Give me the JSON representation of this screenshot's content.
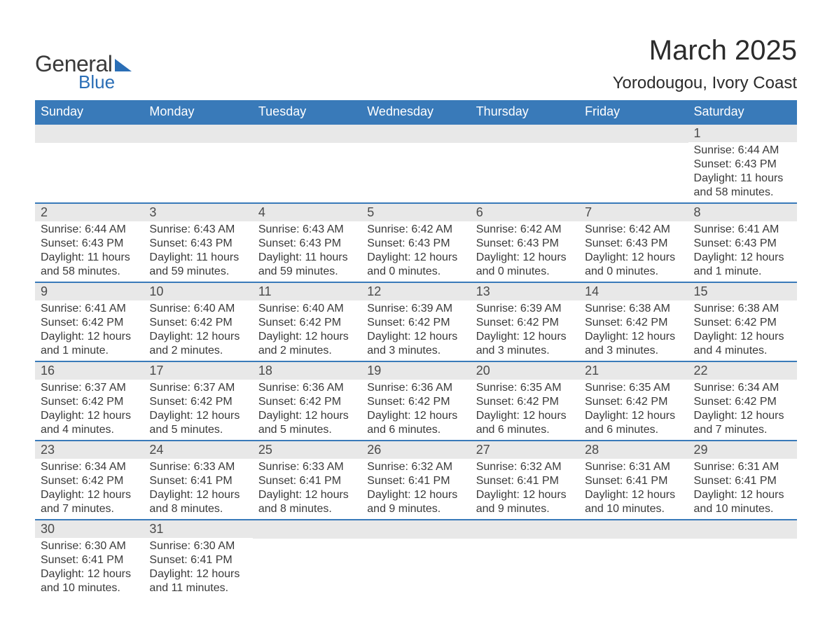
{
  "logo": {
    "text_general": "General",
    "text_blue": "Blue",
    "brand_color": "#2a6eb6"
  },
  "title": "March 2025",
  "location": "Yorodougou, Ivory Coast",
  "colors": {
    "header_bg": "#397ab9",
    "header_text": "#ffffff",
    "daynum_bg": "#e8e8e8",
    "border": "#397ab9",
    "body_text": "#3a3a3a"
  },
  "weekdays": [
    "Sunday",
    "Monday",
    "Tuesday",
    "Wednesday",
    "Thursday",
    "Friday",
    "Saturday"
  ],
  "weeks": [
    [
      null,
      null,
      null,
      null,
      null,
      null,
      {
        "n": "1",
        "sr": "Sunrise: 6:44 AM",
        "ss": "Sunset: 6:43 PM",
        "dl": "Daylight: 11 hours and 58 minutes."
      }
    ],
    [
      {
        "n": "2",
        "sr": "Sunrise: 6:44 AM",
        "ss": "Sunset: 6:43 PM",
        "dl": "Daylight: 11 hours and 58 minutes."
      },
      {
        "n": "3",
        "sr": "Sunrise: 6:43 AM",
        "ss": "Sunset: 6:43 PM",
        "dl": "Daylight: 11 hours and 59 minutes."
      },
      {
        "n": "4",
        "sr": "Sunrise: 6:43 AM",
        "ss": "Sunset: 6:43 PM",
        "dl": "Daylight: 11 hours and 59 minutes."
      },
      {
        "n": "5",
        "sr": "Sunrise: 6:42 AM",
        "ss": "Sunset: 6:43 PM",
        "dl": "Daylight: 12 hours and 0 minutes."
      },
      {
        "n": "6",
        "sr": "Sunrise: 6:42 AM",
        "ss": "Sunset: 6:43 PM",
        "dl": "Daylight: 12 hours and 0 minutes."
      },
      {
        "n": "7",
        "sr": "Sunrise: 6:42 AM",
        "ss": "Sunset: 6:43 PM",
        "dl": "Daylight: 12 hours and 0 minutes."
      },
      {
        "n": "8",
        "sr": "Sunrise: 6:41 AM",
        "ss": "Sunset: 6:43 PM",
        "dl": "Daylight: 12 hours and 1 minute."
      }
    ],
    [
      {
        "n": "9",
        "sr": "Sunrise: 6:41 AM",
        "ss": "Sunset: 6:42 PM",
        "dl": "Daylight: 12 hours and 1 minute."
      },
      {
        "n": "10",
        "sr": "Sunrise: 6:40 AM",
        "ss": "Sunset: 6:42 PM",
        "dl": "Daylight: 12 hours and 2 minutes."
      },
      {
        "n": "11",
        "sr": "Sunrise: 6:40 AM",
        "ss": "Sunset: 6:42 PM",
        "dl": "Daylight: 12 hours and 2 minutes."
      },
      {
        "n": "12",
        "sr": "Sunrise: 6:39 AM",
        "ss": "Sunset: 6:42 PM",
        "dl": "Daylight: 12 hours and 3 minutes."
      },
      {
        "n": "13",
        "sr": "Sunrise: 6:39 AM",
        "ss": "Sunset: 6:42 PM",
        "dl": "Daylight: 12 hours and 3 minutes."
      },
      {
        "n": "14",
        "sr": "Sunrise: 6:38 AM",
        "ss": "Sunset: 6:42 PM",
        "dl": "Daylight: 12 hours and 3 minutes."
      },
      {
        "n": "15",
        "sr": "Sunrise: 6:38 AM",
        "ss": "Sunset: 6:42 PM",
        "dl": "Daylight: 12 hours and 4 minutes."
      }
    ],
    [
      {
        "n": "16",
        "sr": "Sunrise: 6:37 AM",
        "ss": "Sunset: 6:42 PM",
        "dl": "Daylight: 12 hours and 4 minutes."
      },
      {
        "n": "17",
        "sr": "Sunrise: 6:37 AM",
        "ss": "Sunset: 6:42 PM",
        "dl": "Daylight: 12 hours and 5 minutes."
      },
      {
        "n": "18",
        "sr": "Sunrise: 6:36 AM",
        "ss": "Sunset: 6:42 PM",
        "dl": "Daylight: 12 hours and 5 minutes."
      },
      {
        "n": "19",
        "sr": "Sunrise: 6:36 AM",
        "ss": "Sunset: 6:42 PM",
        "dl": "Daylight: 12 hours and 6 minutes."
      },
      {
        "n": "20",
        "sr": "Sunrise: 6:35 AM",
        "ss": "Sunset: 6:42 PM",
        "dl": "Daylight: 12 hours and 6 minutes."
      },
      {
        "n": "21",
        "sr": "Sunrise: 6:35 AM",
        "ss": "Sunset: 6:42 PM",
        "dl": "Daylight: 12 hours and 6 minutes."
      },
      {
        "n": "22",
        "sr": "Sunrise: 6:34 AM",
        "ss": "Sunset: 6:42 PM",
        "dl": "Daylight: 12 hours and 7 minutes."
      }
    ],
    [
      {
        "n": "23",
        "sr": "Sunrise: 6:34 AM",
        "ss": "Sunset: 6:42 PM",
        "dl": "Daylight: 12 hours and 7 minutes."
      },
      {
        "n": "24",
        "sr": "Sunrise: 6:33 AM",
        "ss": "Sunset: 6:41 PM",
        "dl": "Daylight: 12 hours and 8 minutes."
      },
      {
        "n": "25",
        "sr": "Sunrise: 6:33 AM",
        "ss": "Sunset: 6:41 PM",
        "dl": "Daylight: 12 hours and 8 minutes."
      },
      {
        "n": "26",
        "sr": "Sunrise: 6:32 AM",
        "ss": "Sunset: 6:41 PM",
        "dl": "Daylight: 12 hours and 9 minutes."
      },
      {
        "n": "27",
        "sr": "Sunrise: 6:32 AM",
        "ss": "Sunset: 6:41 PM",
        "dl": "Daylight: 12 hours and 9 minutes."
      },
      {
        "n": "28",
        "sr": "Sunrise: 6:31 AM",
        "ss": "Sunset: 6:41 PM",
        "dl": "Daylight: 12 hours and 10 minutes."
      },
      {
        "n": "29",
        "sr": "Sunrise: 6:31 AM",
        "ss": "Sunset: 6:41 PM",
        "dl": "Daylight: 12 hours and 10 minutes."
      }
    ],
    [
      {
        "n": "30",
        "sr": "Sunrise: 6:30 AM",
        "ss": "Sunset: 6:41 PM",
        "dl": "Daylight: 12 hours and 10 minutes."
      },
      {
        "n": "31",
        "sr": "Sunrise: 6:30 AM",
        "ss": "Sunset: 6:41 PM",
        "dl": "Daylight: 12 hours and 11 minutes."
      },
      null,
      null,
      null,
      null,
      null
    ]
  ]
}
